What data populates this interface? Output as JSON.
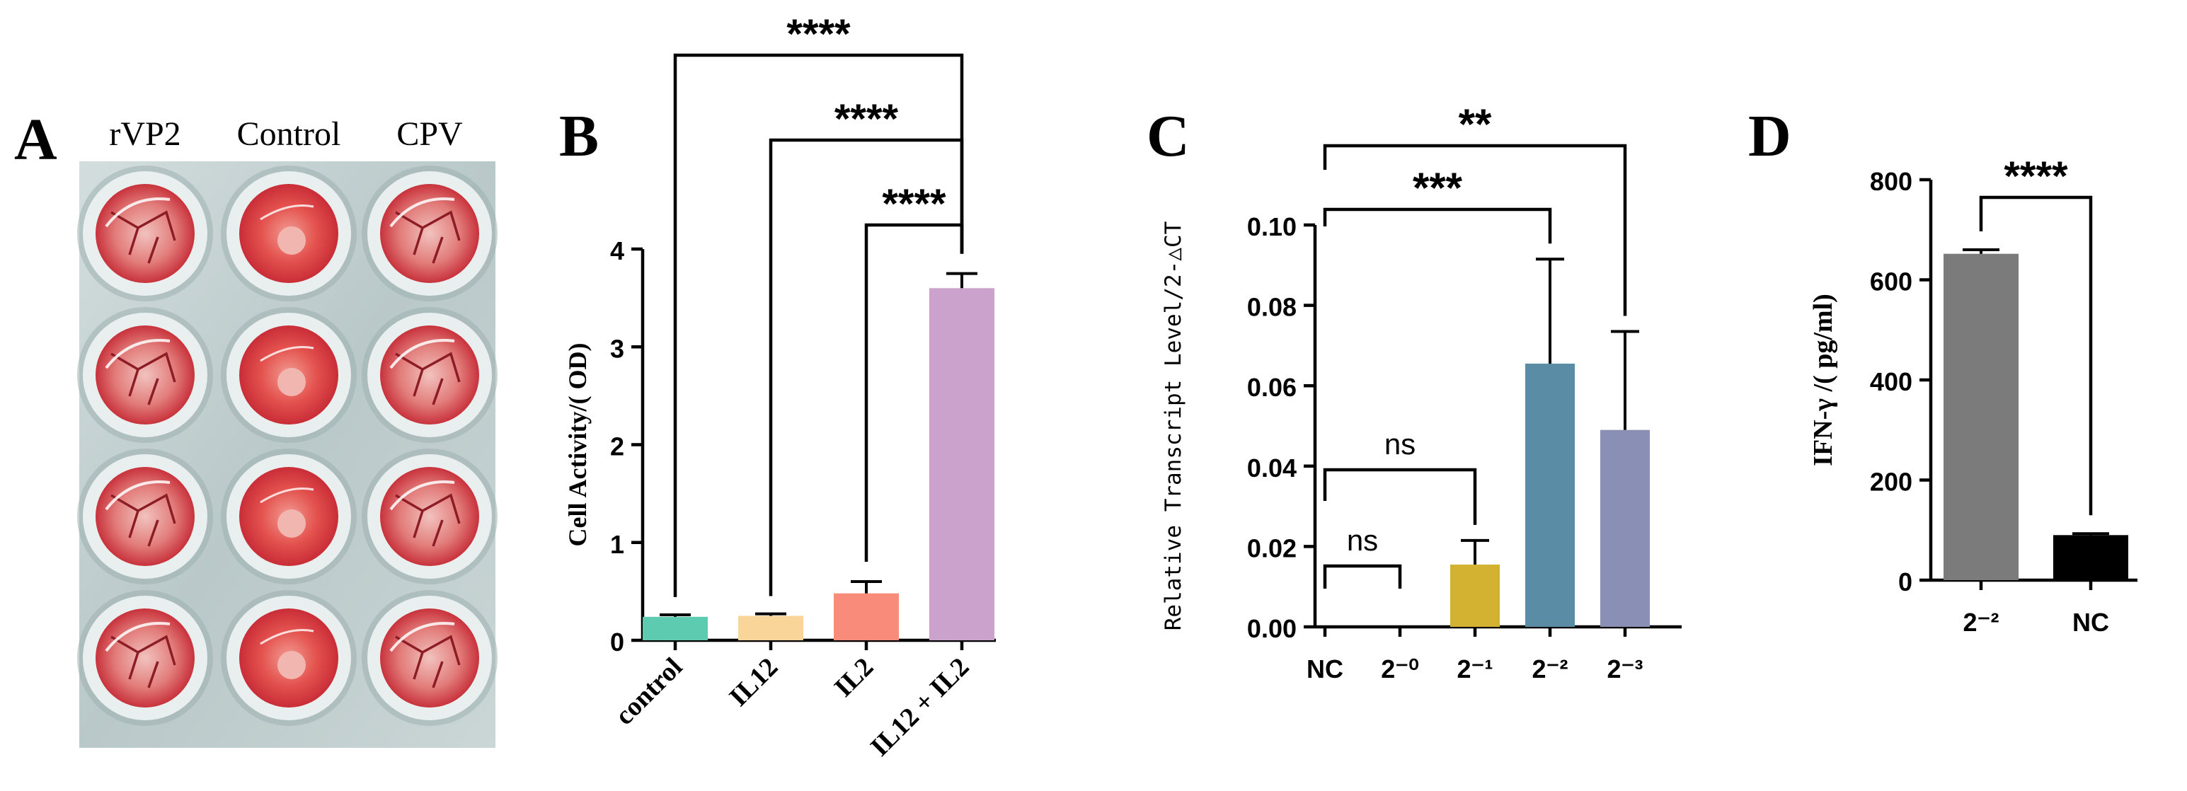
{
  "panel_a": {
    "letter": "A",
    "labels": [
      "rVP2",
      "Control",
      "CPV"
    ],
    "colors": {
      "plate": "#c7d3d3",
      "plate_dark": "#9eb0b1",
      "well_ring": "#e9eeee",
      "red": "#d9363d",
      "red_light": "#ef8c8e",
      "pink_center": "#f2b6b0"
    },
    "well_states": [
      "lysed",
      "intact",
      "lysed"
    ]
  },
  "chart_data": [
    {
      "panel": "B",
      "type": "bar",
      "ylabel": "Cell Activity/( OD)",
      "xlabel": "",
      "categories": [
        "control",
        "IL12",
        "IL2",
        "IL12 + IL2"
      ],
      "values": [
        0.24,
        0.25,
        0.48,
        3.6
      ],
      "errors": [
        0.02,
        0.02,
        0.12,
        0.15
      ],
      "colors": [
        "#5ccbb0",
        "#fad59a",
        "#f88b7a",
        "#caa2cb"
      ],
      "ylim": [
        0,
        4
      ],
      "yticks": [
        "0",
        "1",
        "2",
        "3",
        "4"
      ],
      "significance": [
        {
          "from": "control",
          "to": "IL12 + IL2",
          "label": "****"
        },
        {
          "from": "IL12",
          "to": "IL12 + IL2",
          "label": "****"
        },
        {
          "from": "IL2",
          "to": "IL12 + IL2",
          "label": "****"
        }
      ]
    },
    {
      "panel": "C",
      "type": "bar",
      "ylabel": "Relative Transcript Level/2-△CT",
      "xlabel": "",
      "categories": [
        "NC",
        "2⁻⁰",
        "2⁻¹",
        "2⁻²",
        "2⁻³"
      ],
      "values": [
        0.0,
        0.0,
        0.0155,
        0.0655,
        0.049
      ],
      "errors": [
        0.0,
        0.0,
        0.006,
        0.026,
        0.0245
      ],
      "colors": [
        "#333333",
        "#333333",
        "#d3b131",
        "#5a8ca5",
        "#8a8fb5"
      ],
      "ylim": [
        0,
        0.1
      ],
      "yticks": [
        "0.00",
        "0.02",
        "0.04",
        "0.06",
        "0.08",
        "0.10"
      ],
      "significance": [
        {
          "from": "NC",
          "to": "2⁻³",
          "label": "**"
        },
        {
          "from": "NC",
          "to": "2⁻²",
          "label": "***"
        },
        {
          "from": "NC",
          "to": "2⁻¹",
          "label": "ns"
        },
        {
          "from": "NC",
          "to": "2⁻⁰",
          "label": "ns"
        }
      ]
    },
    {
      "panel": "D",
      "type": "bar",
      "ylabel": "IFN-γ /( pg/ml)",
      "xlabel": "",
      "categories": [
        "2⁻²",
        "NC"
      ],
      "values": [
        652,
        90
      ],
      "errors": [
        8,
        3
      ],
      "colors": [
        "#7b7b7b",
        "#000000"
      ],
      "ylim": [
        0,
        800
      ],
      "yticks": [
        "0",
        "200",
        "400",
        "600",
        "800"
      ],
      "significance": [
        {
          "from": "2⁻²",
          "to": "NC",
          "label": "****"
        }
      ]
    }
  ]
}
